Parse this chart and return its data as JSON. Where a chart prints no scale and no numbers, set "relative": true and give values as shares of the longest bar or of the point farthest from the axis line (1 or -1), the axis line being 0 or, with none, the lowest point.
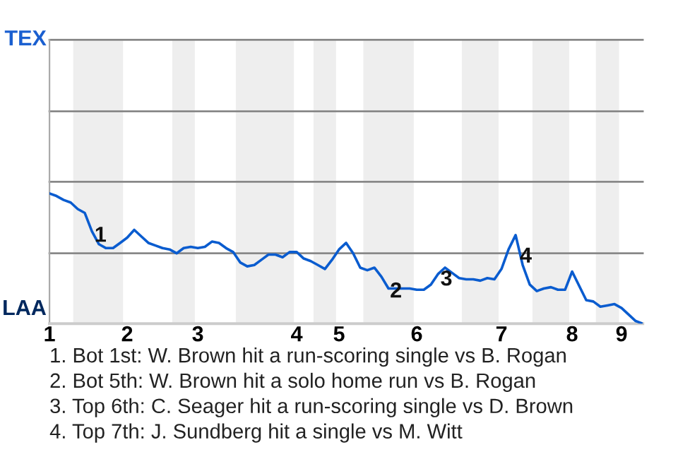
{
  "chart_data": {
    "type": "line",
    "relative": true,
    "categories": [
      "1",
      null,
      null,
      null,
      null,
      null,
      null,
      null,
      null,
      null,
      null,
      "2",
      null,
      null,
      null,
      null,
      null,
      null,
      null,
      null,
      null,
      "3",
      null,
      null,
      null,
      null,
      null,
      null,
      null,
      null,
      null,
      null,
      null,
      null,
      null,
      "4",
      null,
      null,
      null,
      null,
      null,
      "5",
      null,
      null,
      null,
      null,
      null,
      null,
      null,
      null,
      null,
      null,
      "6",
      null,
      null,
      null,
      null,
      null,
      null,
      null,
      null,
      null,
      null,
      null,
      "7",
      null,
      null,
      null,
      null,
      null,
      null,
      null,
      null,
      null,
      "8",
      null,
      null,
      null,
      null,
      null,
      null,
      "9",
      null,
      null,
      null
    ],
    "series": [
      {
        "color": "#0a5ccf",
        "values": [
          1,
          0.98,
          0.95,
          0.93,
          0.88,
          0.85,
          0.71,
          0.61,
          0.58,
          0.58,
          0.62,
          0.66,
          0.72,
          0.67,
          0.62,
          0.6,
          0.58,
          0.57,
          0.54,
          0.58,
          0.59,
          0.58,
          0.59,
          0.63,
          0.62,
          0.58,
          0.55,
          0.47,
          0.44,
          0.45,
          0.49,
          0.53,
          0.53,
          0.51,
          0.55,
          0.55,
          0.5,
          0.48,
          0.45,
          0.42,
          0.49,
          0.57,
          0.62,
          0.54,
          0.43,
          0.41,
          0.43,
          0.36,
          0.27,
          0.27,
          0.27,
          0.27,
          0.26,
          0.26,
          0.3,
          0.38,
          0.43,
          0.39,
          0.35,
          0.34,
          0.34,
          0.33,
          0.35,
          0.34,
          0.42,
          0.57,
          0.68,
          0.45,
          0.3,
          0.25,
          0.27,
          0.28,
          0.26,
          0.26,
          0.4,
          0.29,
          0.18,
          0.17,
          0.13,
          0.14,
          0.15,
          0.12,
          0.07,
          0.02,
          0
        ]
      }
    ],
    "ref_lines": [
      {
        "axis": "y",
        "value": 0.54,
        "color": "#888888"
      },
      {
        "axis": "y",
        "value": 1.09,
        "color": "#888888"
      },
      {
        "axis": "y",
        "value": 1.63,
        "color": "#888888"
      },
      {
        "axis": "y",
        "value": 2.18,
        "color": "#888888"
      }
    ],
    "annotations": [
      "TEX",
      "LAA",
      "1",
      "2",
      "3",
      "4",
      "1. Bot 1st: W. Brown hit a run-scoring single vs B. Rogan",
      "2. Bot 5th: W. Brown hit a solo home run vs B. Rogan",
      "3. Top 6th: C. Seager hit a run-scoring single vs D. Brown",
      "4. Top 7th: J. Sundberg hit a single vs M. Witt"
    ]
  }
}
